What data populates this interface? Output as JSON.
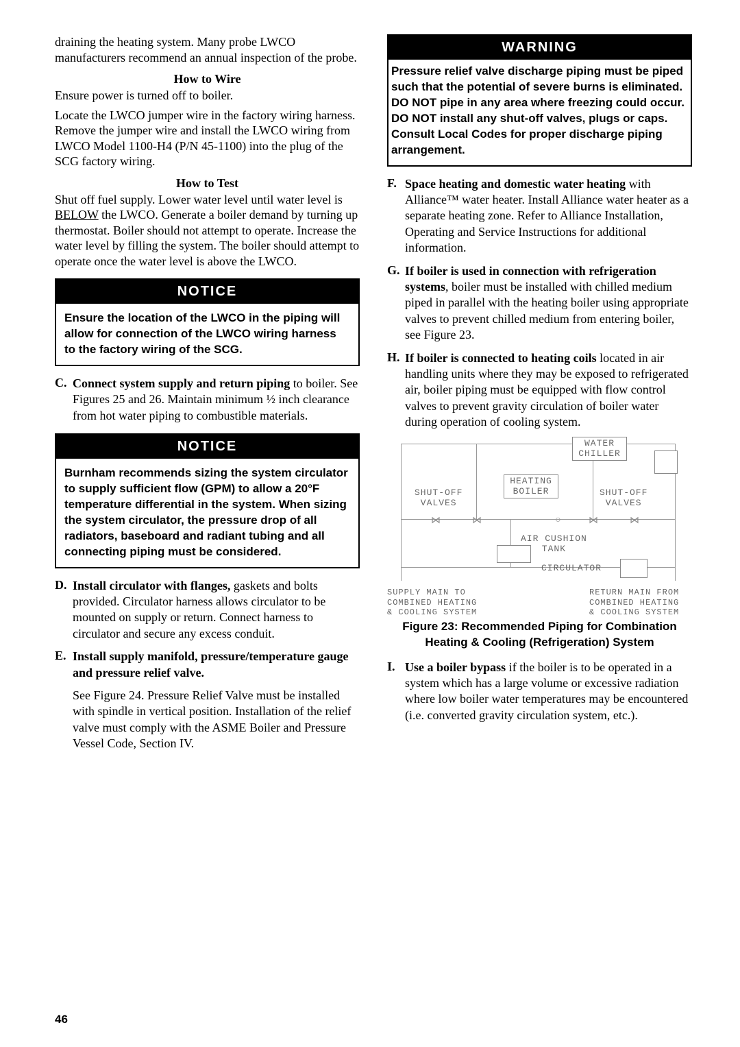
{
  "leftColumn": {
    "introPara": "draining the heating system.  Many probe LWCO manufacturers recommend an annual inspection of the probe.",
    "howToWireHeading": "How to Wire",
    "wire1": "Ensure power is turned off to boiler.",
    "wire2": "Locate the LWCO jumper wire in the factory wiring harness.  Remove the jumper wire and install the LWCO wiring from LWCO Model 1100-H4 (P/N 45-1100) into the plug of the SCG factory wiring.",
    "howToTestHeading": "How to Test",
    "test1a": "Shut off fuel supply.  Lower water level until water level is ",
    "testBelow": "BELOW",
    "test1b": " the LWCO.  Generate a boiler demand by turning up thermostat.  Boiler should not attempt to operate.  Increase the water level by filling the system.  The boiler should attempt to operate once the water level is above the LWCO.",
    "notice1": {
      "header": "NOTICE",
      "body": "Ensure the location of the LWCO in the piping will allow for connection of the LWCO wiring harness to the factory wiring of the SCG."
    },
    "itemC": {
      "letter": "C.",
      "lead": "Connect system supply and return piping",
      "rest": " to boiler.  See Figures 25 and 26.  Maintain minimum ½ inch clearance from hot water piping to combustible materials."
    },
    "notice2": {
      "header": "NOTICE",
      "body": "Burnham recommends sizing the system circulator to supply sufficient flow (GPM) to allow a 20°F temperature differential in the system.  When sizing the system circulator, the pressure drop of all radiators, baseboard and radiant tubing and all connecting piping must be considered."
    },
    "itemD": {
      "letter": "D.",
      "lead": "Install circulator with flanges,",
      "rest": " gaskets and bolts provided.  Circulator harness allows circulator to be mounted on supply or return.  Connect harness to circulator and secure any excess conduit."
    },
    "itemE": {
      "letter": "E.",
      "lead": "Install supply manifold, pressure/temperature gauge and pressure relief valve.",
      "rest": "",
      "sub": " See Figure 24. Pressure Relief Valve must be installed with spindle in vertical position.  Installation of the relief valve must comply with the ASME Boiler and Pressure Vessel Code, Section IV."
    }
  },
  "rightColumn": {
    "warning": {
      "header": "WARNING",
      "body": "Pressure relief valve discharge piping must be piped such that the potential of severe burns is eliminated.  DO NOT pipe in any area where freezing could occur.  DO NOT install any shut-off valves, plugs or caps.  Consult Local Codes for proper discharge piping arrangement."
    },
    "itemF": {
      "letter": "F.",
      "lead": "Space heating and domestic water heating",
      "rest": " with Alliance™ water heater. Install Alliance water heater as a separate heating zone. Refer to Alliance Installation, Operating and Service Instructions for additional information."
    },
    "itemG": {
      "letter": "G.",
      "lead": "If boiler is used in connection with refrigeration systems",
      "rest": ", boiler must be installed with chilled medium piped in parallel with the heating boiler using appropriate valves to prevent chilled medium from entering boiler, see Figure 23."
    },
    "itemH": {
      "letter": "H.",
      "lead": "If boiler is connected to heating coils",
      "rest": " located in air handling units where they may be exposed to refrigerated air, boiler piping must be equipped with flow control valves to prevent gravity circulation of boiler water during operation of cooling system."
    },
    "diagram": {
      "waterChiller": "WATER\nCHILLER",
      "heatingBoiler": "HEATING\nBOILER",
      "shutoffValves": "SHUT-OFF\nVALVES",
      "airCushionTank": "AIR CUSHION\nTANK",
      "circulator": "CIRCULATOR",
      "supplyMain": "SUPPLY MAIN TO\nCOMBINED HEATING\n& COOLING SYSTEM",
      "returnMain": "RETURN MAIN FROM\nCOMBINED HEATING\n& COOLING SYSTEM"
    },
    "figureCaption": "Figure 23:  Recommended Piping for Combination Heating & Cooling (Refrigeration) System",
    "itemI": {
      "letter": "I.",
      "lead": "Use a boiler bypass",
      "rest": " if the boiler is to be operated in a system which has a large volume or excessive radiation where low boiler water temperatures may be encountered (i.e. converted gravity circulation system, etc.)."
    }
  },
  "pageNumber": "46"
}
